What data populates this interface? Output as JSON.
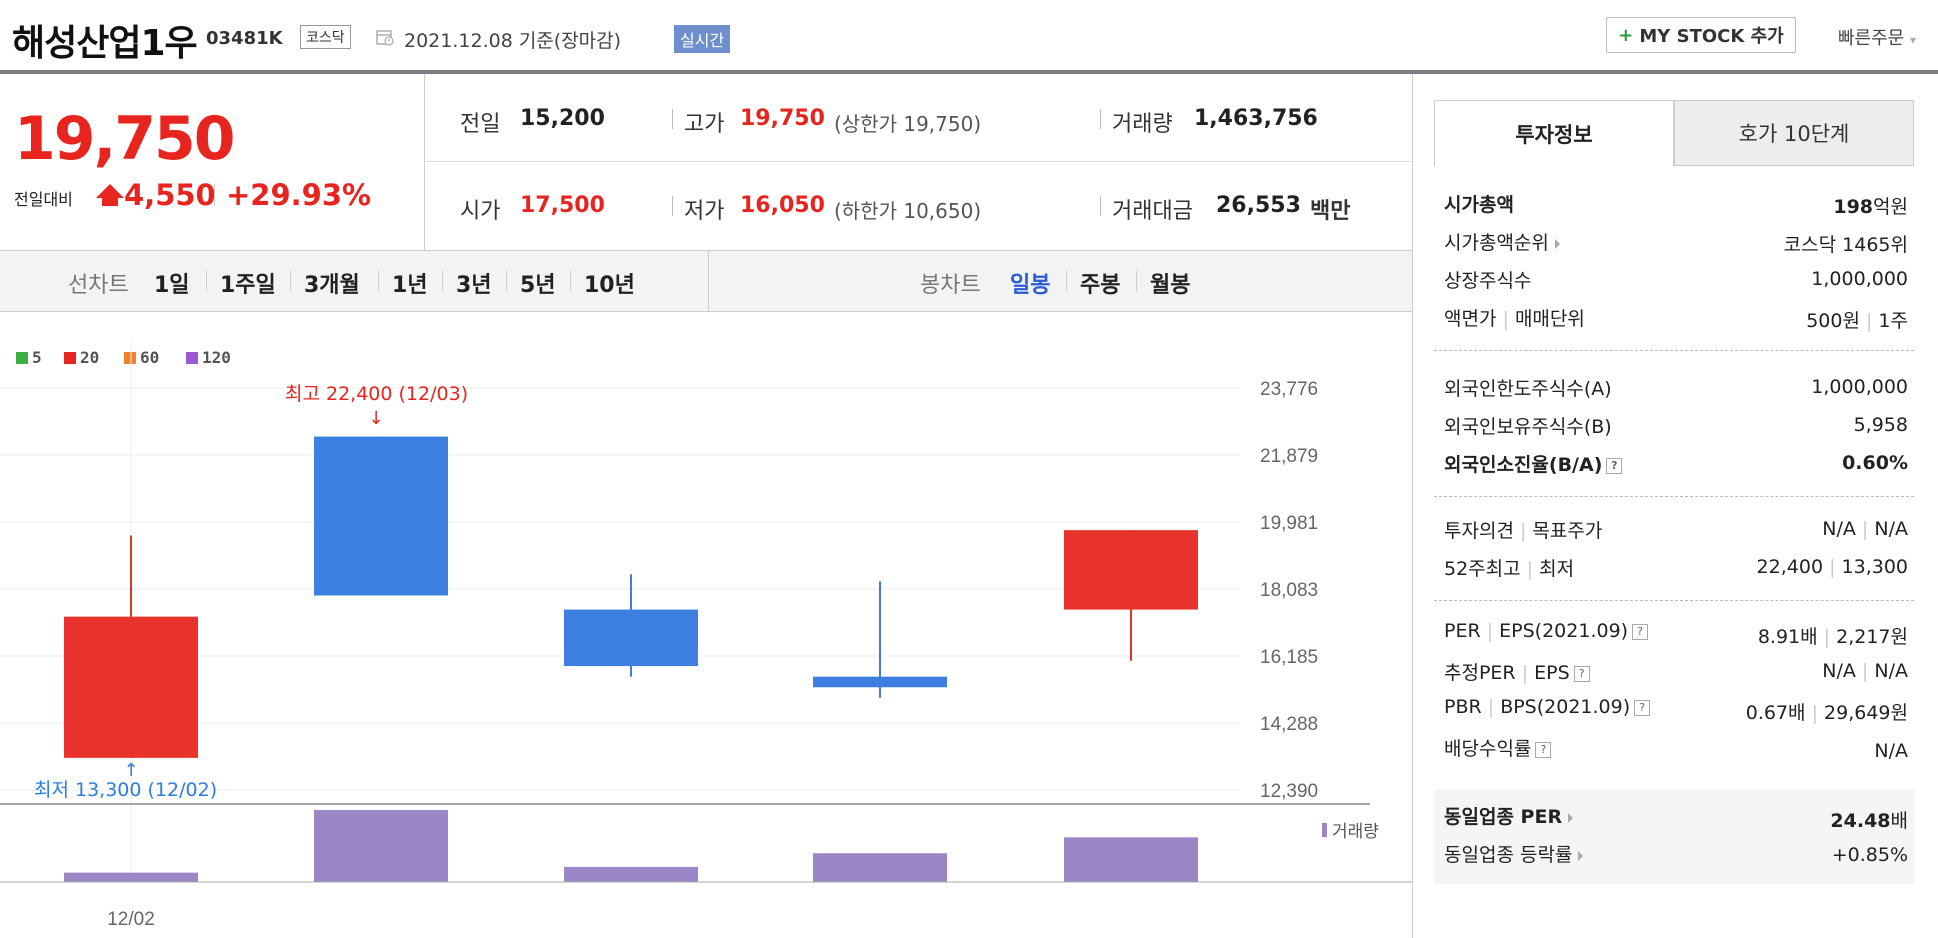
{
  "header": {
    "name": "해성산업1우",
    "code": "03481K",
    "market": "코스닥",
    "date_text": "2021.12.08 기준(장마감)",
    "live_badge": "실시간",
    "mystock_label": "MY STOCK 추가",
    "quick_order_label": "빠른주문"
  },
  "price": {
    "current": "19,750",
    "change_label": "전일대비",
    "change_value": "4,550",
    "change_pct": "+29.93%"
  },
  "summary": {
    "prev_label": "전일",
    "prev_value": "15,200",
    "high_label": "고가",
    "high_value": "19,750",
    "upper_limit": "(상한가 19,750)",
    "volume_label": "거래량",
    "volume_value": "1,463,756",
    "open_label": "시가",
    "open_value": "17,500",
    "low_label": "저가",
    "low_value": "16,050",
    "lower_limit": "(하한가 10,650)",
    "amount_label": "거래대금",
    "amount_value": "26,553",
    "amount_unit": "백만"
  },
  "period_bar": {
    "line_label": "선차트",
    "line_periods": [
      "1일",
      "1주일",
      "3개월",
      "1년",
      "3년",
      "5년",
      "10년"
    ],
    "candle_label": "봉차트",
    "candle_periods": [
      "일봉",
      "주봉",
      "월봉"
    ],
    "active_candle": "일봉"
  },
  "chart_data": {
    "type": "candlestick",
    "legend": [
      {
        "label": "5",
        "color": "#3cb043"
      },
      {
        "label": "20",
        "color": "#e8241e"
      },
      {
        "label": "60",
        "color": "#f0832a"
      },
      {
        "label": "120",
        "color": "#9b59d0"
      }
    ],
    "y_ticks": [
      "23,776",
      "21,879",
      "19,981",
      "18,083",
      "16,185",
      "14,288",
      "12,390"
    ],
    "ylim": [
      12390,
      23776
    ],
    "x_label": "12/02",
    "candles": [
      {
        "open": 13300,
        "close": 17300,
        "high": 19600,
        "low": 13300,
        "color": "#e8322c"
      },
      {
        "open": 22400,
        "close": 17900,
        "high": 22400,
        "low": 17900,
        "color": "#3c7fe0"
      },
      {
        "open": 17500,
        "close": 15900,
        "high": 18500,
        "low": 15600,
        "color": "#3c7fe0"
      },
      {
        "open": 15600,
        "close": 15300,
        "high": 18300,
        "low": 15000,
        "color": "#3c7fe0"
      },
      {
        "open": 17500,
        "close": 19750,
        "high": 19750,
        "low": 16050,
        "color": "#e8322c"
      }
    ],
    "volume_label": "거래량",
    "volumes": [
      0.13,
      1.0,
      0.21,
      0.4,
      0.62
    ],
    "annotations": {
      "high_text": "최고 22,400 (12/03)",
      "low_text": "최저 13,300 (12/02)",
      "high_arrow": "↓",
      "low_arrow": "↑"
    }
  },
  "side": {
    "tabs": [
      "투자정보",
      "호가 10단계"
    ],
    "rows1": [
      {
        "label": "시가총액",
        "value": "198",
        "unit": "억원"
      },
      {
        "label": "시가총액순위",
        "value": "코스닥 1465위"
      },
      {
        "label": "상장주식수",
        "value": "1,000,000"
      },
      {
        "label": "액면가",
        "label2": "매매단위",
        "value": "500원",
        "value2": "1주"
      }
    ],
    "rows2": [
      {
        "label": "외국인한도주식수(A)",
        "value": "1,000,000"
      },
      {
        "label": "외국인보유주식수(B)",
        "value": "5,958"
      },
      {
        "label": "외국인소진율(B/A)",
        "value": "0.60%"
      }
    ],
    "rows3": [
      {
        "label": "투자의견",
        "label2": "목표주가",
        "value": "N/A",
        "value2": "N/A"
      },
      {
        "label": "52주최고",
        "label2": "최저",
        "value": "22,400",
        "value2": "13,300"
      }
    ],
    "rows4": [
      {
        "label": "PER",
        "label2": "EPS(2021.09)",
        "value": "8.91배",
        "value2": "2,217원"
      },
      {
        "label": "추정PER",
        "label2": "EPS",
        "value": "N/A",
        "value2": "N/A"
      },
      {
        "label": "PBR",
        "label2": "BPS(2021.09)",
        "value": "0.67배",
        "value2": "29,649원"
      },
      {
        "label": "배당수익률",
        "value": "N/A"
      }
    ],
    "peer": [
      {
        "label": "동일업종 PER",
        "value": "24.48",
        "unit": "배"
      },
      {
        "label": "동일업종 등락률",
        "value": "+0.85%"
      }
    ],
    "help_glyph": "?"
  }
}
